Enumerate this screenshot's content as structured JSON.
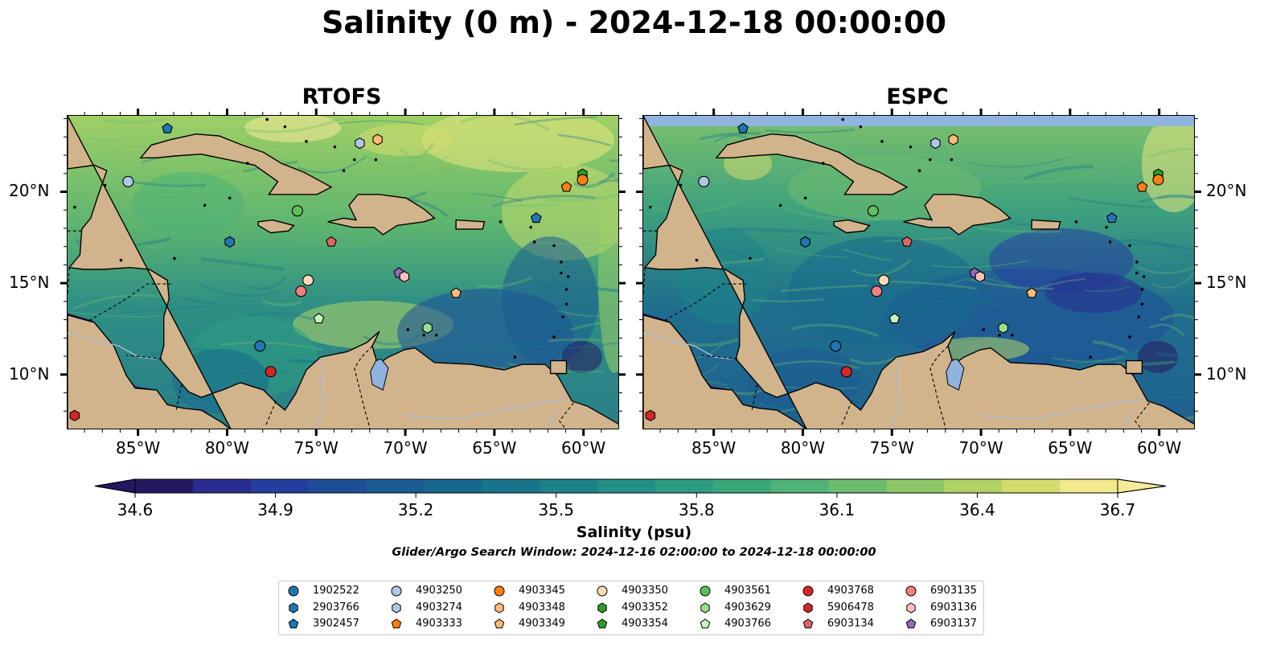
{
  "figure": {
    "title": "Salinity (0 m) - 2024-12-18 00:00:00",
    "search_window": "Glider/Argo Search Window: 2024-12-16 02:00:00 to 2024-12-18 00:00:00"
  },
  "panels": [
    {
      "title": "RTOFS"
    },
    {
      "title": "ESPC"
    }
  ],
  "axes": {
    "x_ticks": [
      "85°W",
      "80°W",
      "75°W",
      "70°W",
      "65°W",
      "60°W"
    ],
    "y_ticks": [
      "10°N",
      "15°N",
      "20°N"
    ]
  },
  "colorbar": {
    "label": "Salinity (psu)",
    "range": [
      34.6,
      36.7
    ],
    "ticks": [
      "34.6",
      "34.9",
      "35.2",
      "35.5",
      "35.8",
      "36.1",
      "36.4",
      "36.7"
    ],
    "colors": [
      "#26185f",
      "#282d8f",
      "#253fa0",
      "#1f4e99",
      "#1a5b92",
      "#17698e",
      "#18768c",
      "#1d8389",
      "#248f86",
      "#2d9c82",
      "#3aa77c",
      "#4fb276",
      "#6dbc6e",
      "#8ec767",
      "#b0d266",
      "#d3dd6e",
      "#f2e88e"
    ]
  },
  "land_color": "#d2b48c",
  "ocean_outside_color": "#2a1a62",
  "floats": [
    {
      "id": "1902522",
      "color": "#1f77b4",
      "marker": "circle"
    },
    {
      "id": "2903766",
      "color": "#1f77b4",
      "marker": "hexagon"
    },
    {
      "id": "3902457",
      "color": "#1f77b4",
      "marker": "pentagon"
    },
    {
      "id": "4903250",
      "color": "#aec7e8",
      "marker": "circle"
    },
    {
      "id": "4903274",
      "color": "#aec7e8",
      "marker": "hexagon"
    },
    {
      "id": "4903333",
      "color": "#ff7f0e",
      "marker": "pentagon"
    },
    {
      "id": "4903345",
      "color": "#ff7f0e",
      "marker": "circle"
    },
    {
      "id": "4903348",
      "color": "#ffbb78",
      "marker": "hexagon"
    },
    {
      "id": "4903349",
      "color": "#ffbb78",
      "marker": "pentagon"
    },
    {
      "id": "4903350",
      "color": "#ffdab9",
      "marker": "circle"
    },
    {
      "id": "4903352",
      "color": "#2ca02c",
      "marker": "hexagon"
    },
    {
      "id": "4903354",
      "color": "#2ca02c",
      "marker": "pentagon"
    },
    {
      "id": "4903561",
      "color": "#5cbf5c",
      "marker": "circle"
    },
    {
      "id": "4903629",
      "color": "#98df8a",
      "marker": "hexagon"
    },
    {
      "id": "4903766",
      "color": "#c7f2c0",
      "marker": "pentagon"
    },
    {
      "id": "4903768",
      "color": "#d62728",
      "marker": "circle"
    },
    {
      "id": "5906478",
      "color": "#d62728",
      "marker": "hexagon"
    },
    {
      "id": "6903134",
      "color": "#e06666",
      "marker": "pentagon"
    },
    {
      "id": "6903135",
      "color": "#f08080",
      "marker": "circle"
    },
    {
      "id": "6903136",
      "color": "#f9c0c0",
      "marker": "hexagon"
    },
    {
      "id": "6903137",
      "color": "#9467bd",
      "marker": "pentagon"
    }
  ],
  "float_positions": [
    {
      "id": "3902457",
      "lon": -83.4,
      "lat": 23.5
    },
    {
      "id": "4903274",
      "lon": -72.6,
      "lat": 22.7
    },
    {
      "id": "4903348",
      "lon": -71.6,
      "lat": 22.9
    },
    {
      "id": "4903250",
      "lon": -85.6,
      "lat": 20.6
    },
    {
      "id": "4903352",
      "lon": -60.1,
      "lat": 21.0
    },
    {
      "id": "4903345",
      "lon": -60.1,
      "lat": 20.7
    },
    {
      "id": "4903333",
      "lon": -61.0,
      "lat": 20.3
    },
    {
      "id": "4903561",
      "lon": -76.1,
      "lat": 19.0
    },
    {
      "id": "2903766",
      "lon": -79.9,
      "lat": 17.3
    },
    {
      "id": "6903134",
      "lon": -74.2,
      "lat": 17.3
    },
    {
      "id": "3902457b",
      "lon": -62.7,
      "lat": 18.6
    },
    {
      "id": "6903137",
      "lon": -70.4,
      "lat": 15.6
    },
    {
      "id": "6903136",
      "lon": -70.1,
      "lat": 15.4
    },
    {
      "id": "4903350",
      "lon": -75.5,
      "lat": 15.2
    },
    {
      "id": "6903135",
      "lon": -75.9,
      "lat": 14.6
    },
    {
      "id": "4903349",
      "lon": -67.2,
      "lat": 14.5
    },
    {
      "id": "4903766",
      "lon": -74.9,
      "lat": 13.1
    },
    {
      "id": "4903629",
      "lon": -68.8,
      "lat": 12.6
    },
    {
      "id": "1902522",
      "lon": -78.2,
      "lat": 11.6
    },
    {
      "id": "4903768",
      "lon": -77.6,
      "lat": 10.2
    },
    {
      "id": "5906478",
      "lon": -88.6,
      "lat": 7.8
    }
  ]
}
